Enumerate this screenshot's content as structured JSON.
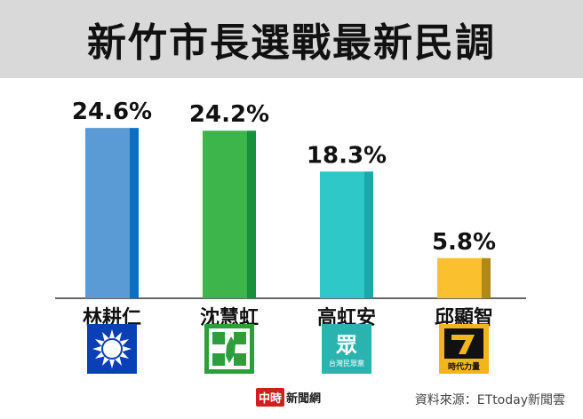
{
  "title": "新竹市長選戰最新民調",
  "chart_data": {
    "type": "bar",
    "categories": [
      "林耕仁",
      "沈慧虹",
      "高虹安",
      "邱顯智"
    ],
    "values": [
      24.6,
      24.2,
      18.3,
      5.8
    ],
    "value_labels": [
      "24.6%",
      "24.2%",
      "18.3%",
      "5.8%"
    ],
    "ylim": [
      0,
      30
    ],
    "grid": false,
    "legend": "none",
    "colors": [
      {
        "front": "#5b9bd5",
        "side": "#0b6fc4"
      },
      {
        "front": "#3db54a",
        "side": "#17913a"
      },
      {
        "front": "#2ec8c8",
        "side": "#1ba8a8"
      },
      {
        "front": "#fbc02d",
        "side": "#b08a14"
      }
    ]
  },
  "logos": [
    {
      "icon": "kmt-sun-icon",
      "bg": "#0b3fb5",
      "fg": "#ffffff"
    },
    {
      "icon": "dpp-taiwan-cross-icon",
      "bg": "#2e9e3c",
      "fg": "#ffffff"
    },
    {
      "icon": "tpp-people-icon",
      "bg": "#2bb3b0",
      "fg": "#ffffff",
      "text": "眾",
      "caption": "台灣民眾黨"
    },
    {
      "icon": "npp-newpower-icon",
      "bg": "#f2b51c",
      "fg": "#111111",
      "caption": "時代力量"
    }
  ],
  "footer": {
    "brand_mark": "中時",
    "brand_text": "新聞網",
    "source": "資料來源：ETtoday新聞雲"
  }
}
